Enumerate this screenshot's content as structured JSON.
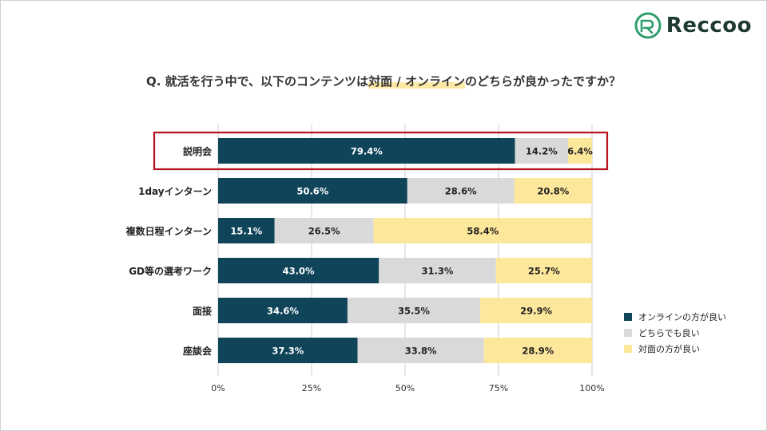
{
  "brand": {
    "name": "Reccoo"
  },
  "title": {
    "before": "Q. 就活を行う中で、以下のコンテンツは",
    "highlight": "対面 / オンライン",
    "after": "のどちらが良かったですか？"
  },
  "colors": {
    "online": "#0f4459",
    "either": "#d9d9d9",
    "face": "#fde79a",
    "highlight_box": "#b5121b"
  },
  "chart_data": {
    "type": "bar",
    "orientation": "horizontal",
    "stacked": true,
    "percent": true,
    "categories": [
      "説明会",
      "1dayインターン",
      "複数日程インターン",
      "GD等の選考ワーク",
      "面接",
      "座談会"
    ],
    "series": [
      {
        "name": "オンラインの方が良い",
        "values": [
          79.4,
          50.6,
          15.1,
          43.0,
          34.6,
          37.3
        ],
        "labels": [
          "79.4%",
          "50.6%",
          "15.1%",
          "43.0%",
          "34.6%",
          "37.3%"
        ]
      },
      {
        "name": "どちらでも良い",
        "values": [
          14.2,
          28.6,
          26.5,
          31.3,
          35.5,
          33.8
        ],
        "labels": [
          "14.2%",
          "28.6%",
          "26.5%",
          "31.3%",
          "35.5%",
          "33.8%"
        ]
      },
      {
        "name": "対面の方が良い",
        "values": [
          6.4,
          20.8,
          58.4,
          25.7,
          29.9,
          28.9
        ],
        "labels": [
          "6.4%",
          "20.8%",
          "58.4%",
          "25.7%",
          "29.9%",
          "28.9%"
        ]
      }
    ],
    "xlim": [
      0,
      100
    ],
    "xticks": [
      0,
      25,
      50,
      75,
      100
    ],
    "xtick_labels": [
      "0%",
      "25%",
      "50%",
      "75%",
      "100%"
    ],
    "grid": true,
    "legend": "right",
    "highlighted_category": "説明会"
  }
}
